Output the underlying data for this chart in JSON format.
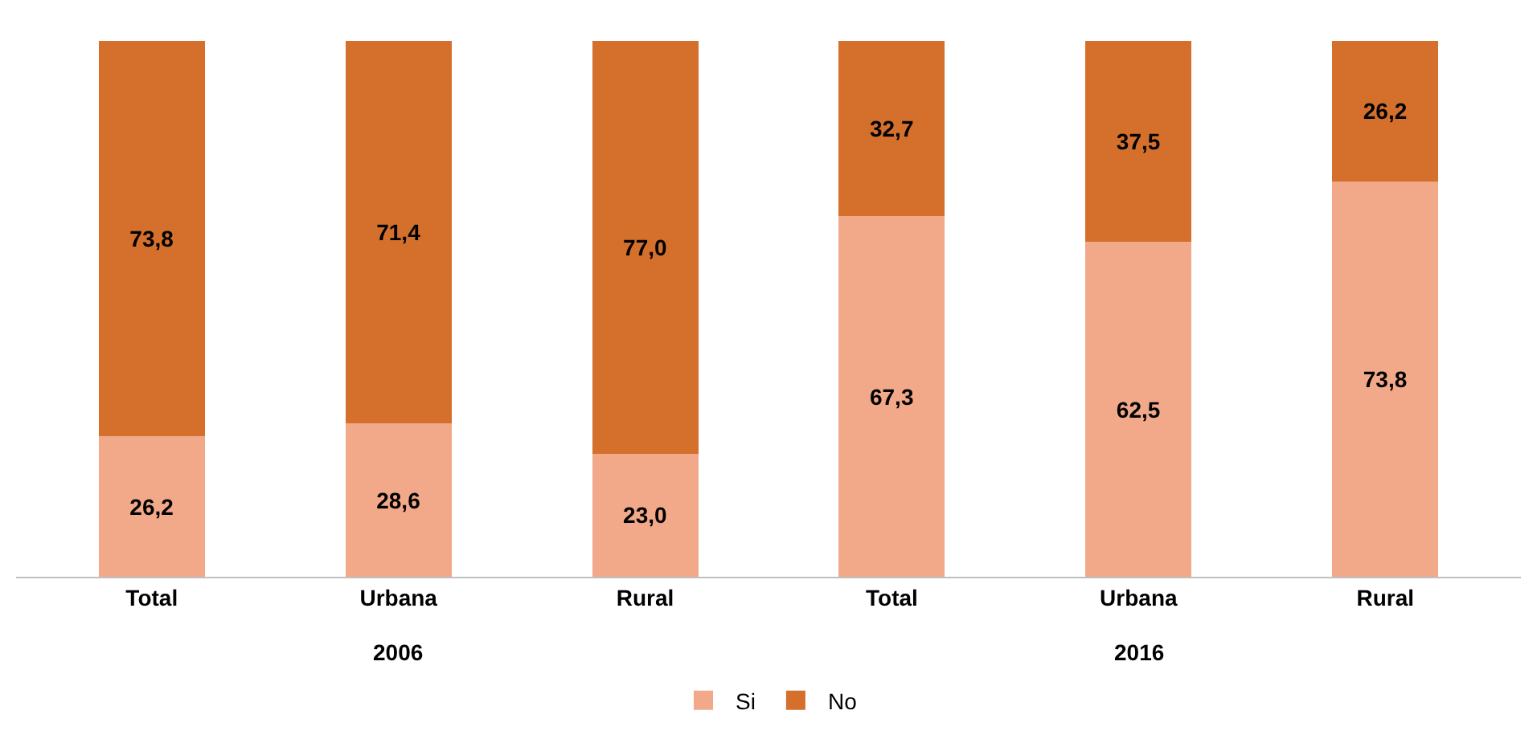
{
  "chart_data": {
    "type": "bar",
    "stacked": true,
    "categories": [
      "Total",
      "Urbana",
      "Rural",
      "Total",
      "Urbana",
      "Rural"
    ],
    "series": [
      {
        "name": "Si",
        "color": "#f2a98a",
        "values": [
          26.2,
          28.6,
          23.0,
          67.3,
          62.5,
          73.8
        ],
        "value_labels": [
          "26,2",
          "28,6",
          "23,0",
          "67,3",
          "62,5",
          "73,8"
        ]
      },
      {
        "name": "No",
        "color": "#d4702c",
        "values": [
          73.8,
          71.4,
          77.0,
          32.7,
          37.5,
          26.2
        ],
        "value_labels": [
          "73,8",
          "71,4",
          "77,0",
          "32,7",
          "37,5",
          "26,2"
        ]
      }
    ],
    "annotations": [
      "2006",
      "2016"
    ],
    "legend": "bottom"
  }
}
